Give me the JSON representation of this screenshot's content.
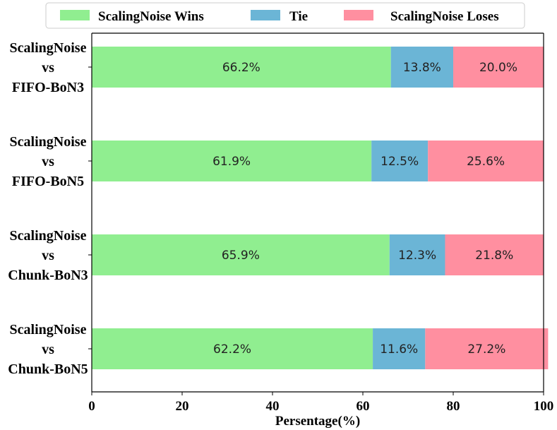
{
  "chart_data": {
    "type": "bar",
    "orientation": "horizontal",
    "stacked": true,
    "xlabel": "Persentage(%)",
    "xlim": [
      0,
      100
    ],
    "xticks": [
      0,
      20,
      40,
      60,
      80,
      100
    ],
    "categories": [
      [
        "ScalingNoise",
        "vs",
        "FIFO-BoN3"
      ],
      [
        "ScalingNoise",
        "vs",
        "FIFO-BoN5"
      ],
      [
        "ScalingNoise",
        "vs",
        "Chunk-BoN3"
      ],
      [
        "ScalingNoise",
        "vs",
        "Chunk-BoN5"
      ]
    ],
    "series": [
      {
        "name": "ScalingNoise Wins",
        "color": "#90ee90",
        "values": [
          66.2,
          61.9,
          65.9,
          62.2
        ],
        "labels": [
          "66.2%",
          "61.9%",
          "65.9%",
          "62.2%"
        ]
      },
      {
        "name": "Tie",
        "color": "#6bb5d6",
        "values": [
          13.8,
          12.5,
          12.3,
          11.6
        ],
        "labels": [
          "13.8%",
          "12.5%",
          "12.3%",
          "11.6%"
        ]
      },
      {
        "name": "ScalingNoise Loses",
        "color": "#ff8fa0",
        "values": [
          20.0,
          25.6,
          21.8,
          27.2
        ],
        "labels": [
          "20.0%",
          "25.6%",
          "21.8%",
          "27.2%"
        ]
      }
    ],
    "legend_position": "top"
  }
}
